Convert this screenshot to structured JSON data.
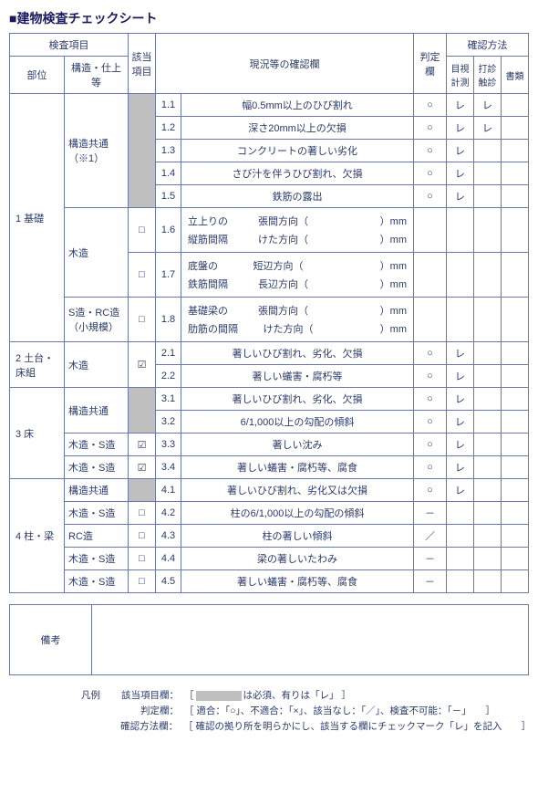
{
  "title": "■建物検査チェックシート",
  "headers": {
    "inspection_item": "検査項目",
    "applicable": "該当\n項目",
    "status": "現況等の確認欄",
    "judgment": "判定欄",
    "method": "確認方法",
    "part": "部位",
    "structure": "構造・仕上等",
    "visual": "目視\n計測",
    "tap": "打診\n触診",
    "document": "書類"
  },
  "sections": [
    {
      "part_no": "1",
      "part": "基礎",
      "groups": [
        {
          "structure": "構造共通（※1）",
          "applicable_gray": true,
          "applicable": "",
          "rows": [
            {
              "n": "1.1",
              "d": "幅0.5mm以上のひび割れ",
              "j": "○",
              "v": "レ",
              "t": "レ",
              "b": ""
            },
            {
              "n": "1.2",
              "d": "深さ20mm以上の欠損",
              "j": "○",
              "v": "レ",
              "t": "レ",
              "b": ""
            },
            {
              "n": "1.3",
              "d": "コンクリートの著しい劣化",
              "j": "○",
              "v": "レ",
              "t": "",
              "b": ""
            },
            {
              "n": "1.4",
              "d": "さび汁を伴うひび割れ、欠損",
              "j": "○",
              "v": "レ",
              "t": "",
              "b": ""
            },
            {
              "n": "1.5",
              "d": "鉄筋の露出",
              "j": "○",
              "v": "レ",
              "t": "",
              "b": ""
            }
          ]
        },
        {
          "structure": "木造",
          "applicable_gray": false,
          "measure_groups": [
            {
              "applicable": "□",
              "n": "1.6",
              "lines": [
                {
                  "a": "立上りの",
                  "b": "張間方向（",
                  "c": "）mm"
                },
                {
                  "a": "縦筋間隔",
                  "b": "けた方向（",
                  "c": "）mm"
                }
              ]
            },
            {
              "applicable": "□",
              "n": "1.7",
              "lines": [
                {
                  "a": "底盤の",
                  "b": "短辺方向（",
                  "c": "）mm"
                },
                {
                  "a": "鉄筋間隔",
                  "b": "長辺方向（",
                  "c": "）mm"
                }
              ]
            }
          ]
        },
        {
          "structure": "S造・RC造\n（小規模）",
          "applicable_gray": false,
          "measure_groups": [
            {
              "applicable": "□",
              "n": "1.8",
              "lines": [
                {
                  "a": "基礎梁の",
                  "b": "張間方向（",
                  "c": "）mm"
                },
                {
                  "a": "肋筋の間隔",
                  "b": "けた方向（",
                  "c": "）mm"
                }
              ]
            }
          ]
        }
      ]
    },
    {
      "part_no": "2",
      "part": "土台・床組",
      "groups": [
        {
          "structure": "木造",
          "applicable_gray": false,
          "applicable": "☑",
          "rows": [
            {
              "n": "2.1",
              "d": "著しいひび割れ、劣化、欠損",
              "j": "○",
              "v": "レ",
              "t": "",
              "b": ""
            },
            {
              "n": "2.2",
              "d": "著しい蟻害・腐朽等",
              "j": "○",
              "v": "レ",
              "t": "",
              "b": ""
            }
          ]
        }
      ]
    },
    {
      "part_no": "3",
      "part": "床",
      "groups": [
        {
          "structure": "構造共通",
          "applicable_gray": true,
          "applicable": "",
          "rows": [
            {
              "n": "3.1",
              "d": "著しいひび割れ、劣化、欠損",
              "j": "○",
              "v": "レ",
              "t": "",
              "b": ""
            },
            {
              "n": "3.2",
              "d": "6/1,000以上の勾配の傾斜",
              "j": "○",
              "v": "レ",
              "t": "",
              "b": ""
            }
          ]
        },
        {
          "structure": "木造・S造",
          "applicable_gray": false,
          "applicable": "☑",
          "rows": [
            {
              "n": "3.3",
              "d": "著しい沈み",
              "j": "○",
              "v": "レ",
              "t": "",
              "b": ""
            }
          ]
        },
        {
          "structure": "木造・S造",
          "applicable_gray": false,
          "applicable": "☑",
          "rows": [
            {
              "n": "3.4",
              "d": "著しい蟻害・腐朽等、腐食",
              "j": "○",
              "v": "レ",
              "t": "",
              "b": ""
            }
          ]
        }
      ]
    },
    {
      "part_no": "4",
      "part": "柱・梁",
      "groups": [
        {
          "structure": "構造共通",
          "applicable_gray": true,
          "applicable": "",
          "rows": [
            {
              "n": "4.1",
              "d": "著しいひび割れ、劣化又は欠損",
              "j": "○",
              "v": "レ",
              "t": "",
              "b": ""
            }
          ]
        },
        {
          "structure": "木造・S造",
          "applicable_gray": false,
          "applicable": "□",
          "rows": [
            {
              "n": "4.2",
              "d": "柱の6/1,000以上の勾配の傾斜",
              "j": "－",
              "v": "",
              "t": "",
              "b": ""
            }
          ]
        },
        {
          "structure": "RC造",
          "applicable_gray": false,
          "applicable": "□",
          "rows": [
            {
              "n": "4.3",
              "d": "柱の著しい傾斜",
              "j": "／",
              "v": "",
              "t": "",
              "b": ""
            }
          ]
        },
        {
          "structure": "木造・S造",
          "applicable_gray": false,
          "applicable": "□",
          "rows": [
            {
              "n": "4.4",
              "d": "梁の著しいたわみ",
              "j": "－",
              "v": "",
              "t": "",
              "b": ""
            }
          ]
        },
        {
          "structure": "木造・S造",
          "applicable_gray": false,
          "applicable": "□",
          "rows": [
            {
              "n": "4.5",
              "d": "著しい蟻害・腐朽等、腐食",
              "j": "－",
              "v": "",
              "t": "",
              "b": ""
            }
          ]
        }
      ]
    }
  ],
  "remarks_label": "備考",
  "legend": {
    "title": "凡例",
    "row1_label": "該当項目欄：",
    "row1_text_a": "［",
    "row1_text_b": "は必須、有りは「レ」 ］",
    "row2_label": "判定欄：",
    "row2_text": "［ 適合：「○」、不適合：「×」、該当なし：「／」、検査不可能：「－」　　］",
    "row3_label": "確認方法欄：",
    "row3_text": "［ 確認の拠り所を明らかにし、該当する欄にチェックマーク「レ」を記入　　］"
  }
}
